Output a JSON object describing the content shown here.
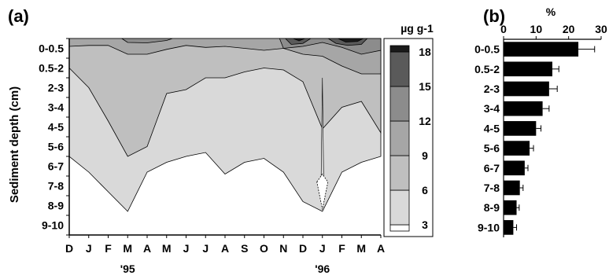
{
  "chart_data": [
    {
      "id": "a",
      "type": "contour",
      "panel_label": "(a)",
      "ylabel": "Sediment depth (cm)",
      "depth_labels": [
        "0-0.5",
        "0.5-2",
        "2-3",
        "3-4",
        "4-5",
        "5-6",
        "6-7",
        "7-8",
        "8-9",
        "9-10"
      ],
      "month_labels": [
        "D",
        "J",
        "F",
        "M",
        "A",
        "M",
        "J",
        "J",
        "A",
        "S",
        "O",
        "N",
        "D",
        "J",
        "F",
        "M",
        "A"
      ],
      "year_labels": [
        {
          "text": "'95",
          "month_index": 3
        },
        {
          "text": "'96",
          "month_index": 13
        }
      ],
      "colorbar": {
        "title": "µg g-1",
        "levels": [
          3,
          6,
          9,
          12,
          15,
          18
        ],
        "colors": [
          "#ffffff",
          "#d9d9d9",
          "#bfbfbf",
          "#a6a6a6",
          "#8c8c8c",
          "#5a5a5a",
          "#1a1a1a"
        ]
      },
      "boundaries_depth_by_month": {
        "lt3_upper": [
          null,
          null,
          null,
          null,
          null,
          null,
          null,
          null,
          null,
          null,
          null,
          null,
          null,
          8.8,
          null,
          null,
          null
        ],
        "c3_6": [
          6.0,
          6.8,
          7.8,
          8.8,
          6.8,
          6.3,
          6.0,
          5.8,
          6.9,
          6.3,
          6.1,
          6.8,
          8.3,
          8.8,
          6.8,
          6.3,
          6.0
        ],
        "c6_9": [
          1.5,
          2.5,
          4.2,
          6.0,
          5.5,
          2.8,
          2.6,
          2.0,
          2.0,
          1.7,
          1.5,
          1.6,
          2.2,
          4.6,
          3.5,
          3.2,
          4.8
        ],
        "c9_12": [
          0.4,
          0.35,
          0.35,
          0.8,
          0.8,
          0.55,
          0.35,
          0.45,
          0.4,
          0.5,
          0.6,
          0.5,
          0.8,
          0.9,
          1.4,
          1.8,
          1.8
        ],
        "c12_15": [
          null,
          null,
          null,
          0.2,
          0.22,
          0.1,
          null,
          null,
          null,
          null,
          0.05,
          0.5,
          0.4,
          0.2,
          0.45,
          0.8,
          0.6
        ]
      }
    },
    {
      "id": "b",
      "type": "bar",
      "orientation": "horizontal",
      "panel_label": "(b)",
      "xlabel": "%",
      "xlim": [
        0,
        30
      ],
      "ticks": [
        0,
        10,
        20,
        30
      ],
      "categories": [
        "0-0.5",
        "0.5-2",
        "2-3",
        "3-4",
        "4-5",
        "5-6",
        "6-7",
        "7-8",
        "8-9",
        "9-10"
      ],
      "values": [
        23,
        15,
        14,
        12,
        10,
        8,
        6.5,
        5,
        4,
        3
      ],
      "errors": [
        5,
        2,
        2.5,
        2,
        1.5,
        1.2,
        1,
        1,
        0.8,
        1
      ],
      "bar_color": "#000000"
    }
  ]
}
